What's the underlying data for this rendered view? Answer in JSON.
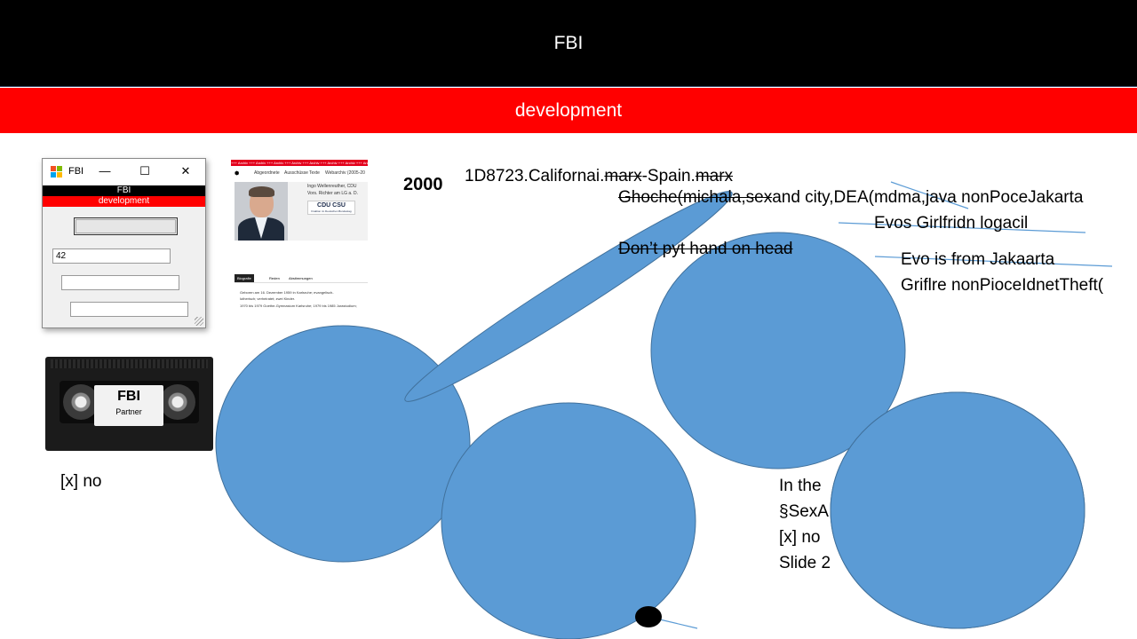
{
  "header": {
    "title": "FBI",
    "subtitle": "development"
  },
  "window": {
    "title": "FBI",
    "controls": {
      "minimize": "—",
      "maximize": "☐",
      "close": "✕"
    },
    "bar_top": "FBI",
    "bar_bottom": "development",
    "button_label": "",
    "field1_value": "42",
    "field2_value": "",
    "field3_value": ""
  },
  "webpage": {
    "ticker": "+++ Archiv +++ Archiv +++ Archiv +++ Archiv +++ Archiv +++ Archiv +++ Archiv +++ Archiv",
    "nav": [
      "Abgeordnete",
      "Ausschüsse",
      "Texte",
      "Webarchiv (2005-20"
    ],
    "name_line": "Ingo Wellenreuther, CDU",
    "role_line": "Vors. Richter am LG a. D.",
    "logo_main": "CDU CSU",
    "logo_sub": "Fraktion im Deutschen Bundestag",
    "tabs": [
      "Biografie",
      "Reden",
      "Abstimmungen"
    ],
    "bio": [
      "Geboren am 16. Dezember 1959 in Karlsruhe; evangelisch-",
      "lutherisch; verheiratet; zwei Kinder.",
      "1970 bis 1979 Goethe-Gymnasium Karlsruhe; 1979 bis 1985 Jurastudium;"
    ]
  },
  "cassette": {
    "label_title": "FBI",
    "label_sub": "Partner"
  },
  "slide": {
    "checkbox_left": "[x] no",
    "year": "2000",
    "line1": {
      "a": "1D8723.Californai.",
      "b": "marx",
      "c": "-Spain.",
      "d": "marx"
    },
    "line2": {
      "struck": "Ghoche(michala,sex",
      "rest": "and city,DEA(mdma,java nonPoceJakarta"
    },
    "line3": "Evos Girlfridn logacil",
    "line4": "Don’t pyt hand on head",
    "line5": "Evo is from Jakaarta",
    "line6": "Griflre nonPioceIdnetTheft(",
    "bottom": [
      "In the",
      "§SexA",
      "[x] no",
      "Slide 2"
    ]
  },
  "colors": {
    "black_bar": "#000000",
    "red_bar": "#ff0000",
    "shape_fill": "#5b9bd5",
    "shape_stroke": "#41719c"
  },
  "icons": {
    "app": "windows-app-icon",
    "min": "minimize-icon",
    "max": "maximize-icon",
    "close": "close-icon"
  }
}
